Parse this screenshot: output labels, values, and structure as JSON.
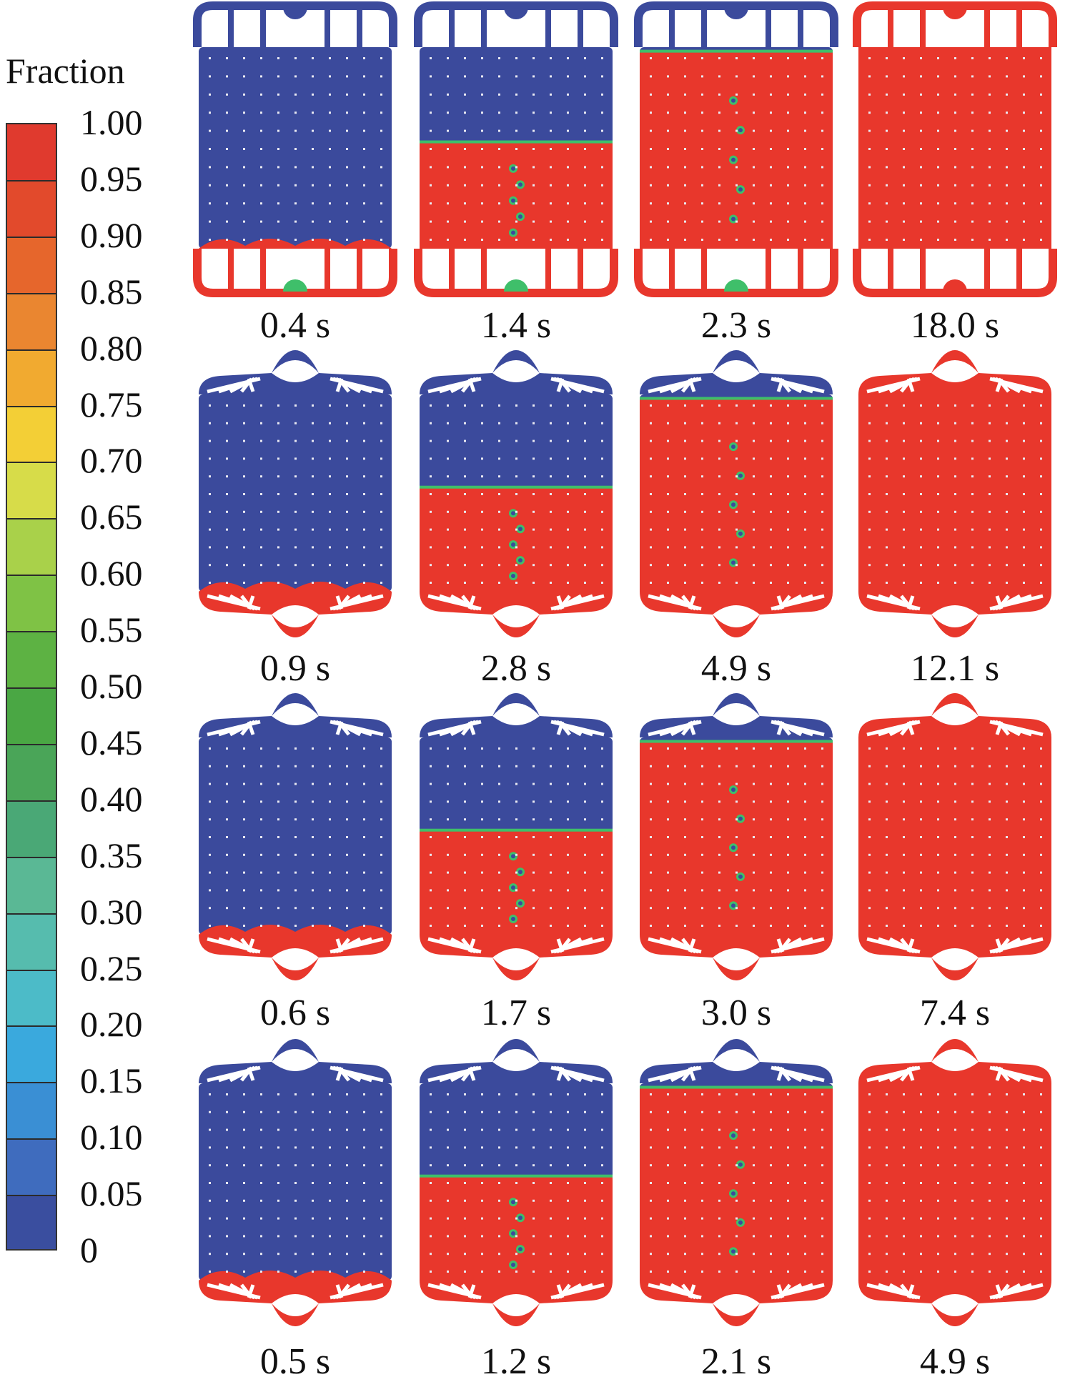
{
  "legend": {
    "title": "Fraction",
    "ticks": [
      "1.00",
      "0.95",
      "0.90",
      "0.85",
      "0.80",
      "0.75",
      "0.70",
      "0.65",
      "0.60",
      "0.55",
      "0.50",
      "0.45",
      "0.40",
      "0.35",
      "0.30",
      "0.25",
      "0.20",
      "0.15",
      "0.10",
      "0.05",
      "0"
    ],
    "colors": [
      "#e03a2e",
      "#e24a2c",
      "#e6662c",
      "#ea8630",
      "#f1aa30",
      "#f3cf36",
      "#d7dc49",
      "#a9d14a",
      "#7fc245",
      "#5db243",
      "#4aa744",
      "#4aa558",
      "#4aa876",
      "#5ab895",
      "#56bcae",
      "#4cbbc8",
      "#3aa9dd",
      "#3a8fd4",
      "#3f6cbe",
      "#3a4e9f"
    ]
  },
  "panels": [
    [
      {
        "time": "0.4 s",
        "fill": 0.0
      },
      {
        "time": "1.4 s",
        "fill": 0.53
      },
      {
        "time": "2.3 s",
        "fill": 0.98
      },
      {
        "time": "18.0 s",
        "fill": 1.0
      }
    ],
    [
      {
        "time": "0.9 s",
        "fill": 0.0
      },
      {
        "time": "2.8 s",
        "fill": 0.53
      },
      {
        "time": "4.9 s",
        "fill": 0.98
      },
      {
        "time": "12.1 s",
        "fill": 1.0
      }
    ],
    [
      {
        "time": "0.6 s",
        "fill": 0.0
      },
      {
        "time": "1.7 s",
        "fill": 0.53
      },
      {
        "time": "3.0 s",
        "fill": 0.98
      },
      {
        "time": "7.4 s",
        "fill": 1.0
      }
    ],
    [
      {
        "time": "0.5 s",
        "fill": 0.0
      },
      {
        "time": "1.2 s",
        "fill": 0.53
      },
      {
        "time": "2.1 s",
        "fill": 0.98
      },
      {
        "time": "4.9 s",
        "fill": 1.0
      }
    ]
  ],
  "palette": {
    "liquid": "#e8372c",
    "air": "#3b4a9c",
    "interface": "#3fbf6a",
    "droplet": "#e6d83a"
  }
}
